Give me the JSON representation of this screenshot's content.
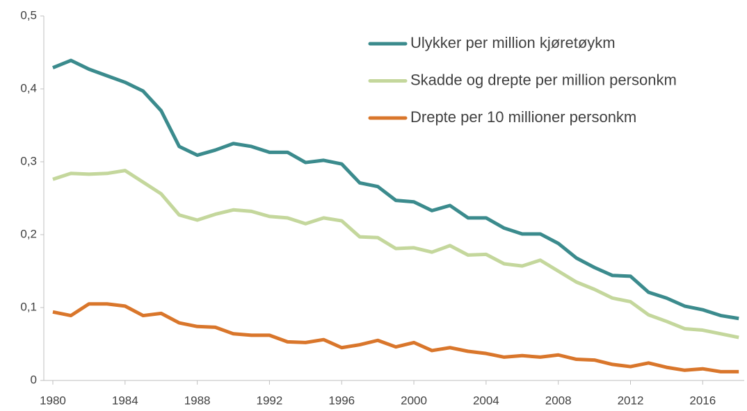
{
  "chart_data": {
    "type": "line",
    "x": [
      1980,
      1981,
      1982,
      1983,
      1984,
      1985,
      1986,
      1987,
      1988,
      1989,
      1990,
      1991,
      1992,
      1993,
      1994,
      1995,
      1996,
      1997,
      1998,
      1999,
      2000,
      2001,
      2002,
      2003,
      2004,
      2005,
      2006,
      2007,
      2008,
      2009,
      2010,
      2011,
      2012,
      2013,
      2014,
      2015,
      2016,
      2017,
      2018
    ],
    "series": [
      {
        "name": "Ulykker per million kjøretøykm",
        "color": "#3b8b8d",
        "values": [
          0.429,
          0.439,
          0.427,
          0.418,
          0.409,
          0.397,
          0.37,
          0.321,
          0.309,
          0.316,
          0.325,
          0.321,
          0.313,
          0.313,
          0.299,
          0.302,
          0.297,
          0.271,
          0.266,
          0.247,
          0.245,
          0.233,
          0.24,
          0.223,
          0.223,
          0.209,
          0.201,
          0.201,
          0.188,
          0.168,
          0.155,
          0.144,
          0.143,
          0.121,
          0.113,
          0.102,
          0.097,
          0.089,
          0.085
        ]
      },
      {
        "name": "Skadde og drepte per million personkm",
        "color": "#c4d79c",
        "values": [
          0.276,
          0.284,
          0.283,
          0.284,
          0.288,
          0.272,
          0.256,
          0.227,
          0.22,
          0.228,
          0.234,
          0.232,
          0.225,
          0.223,
          0.215,
          0.223,
          0.219,
          0.197,
          0.196,
          0.181,
          0.182,
          0.176,
          0.185,
          0.172,
          0.173,
          0.16,
          0.157,
          0.165,
          0.15,
          0.135,
          0.125,
          0.113,
          0.108,
          0.09,
          0.081,
          0.071,
          0.069,
          0.064,
          0.059
        ]
      },
      {
        "name": "Drepte per 10 millioner personkm",
        "color": "#d9762b",
        "values": [
          0.094,
          0.089,
          0.105,
          0.105,
          0.102,
          0.089,
          0.092,
          0.079,
          0.074,
          0.073,
          0.064,
          0.062,
          0.062,
          0.053,
          0.052,
          0.056,
          0.045,
          0.049,
          0.055,
          0.046,
          0.052,
          0.041,
          0.045,
          0.04,
          0.037,
          0.032,
          0.034,
          0.032,
          0.035,
          0.029,
          0.028,
          0.022,
          0.019,
          0.024,
          0.018,
          0.014,
          0.016,
          0.012,
          0.012
        ]
      }
    ],
    "xlim": [
      1979.5,
      2018.3
    ],
    "xticks": [
      1980,
      1984,
      1988,
      1992,
      1996,
      2000,
      2004,
      2008,
      2012,
      2016
    ],
    "ylim": [
      0,
      0.5
    ],
    "yticks": [
      0,
      {
        "value": 0.1,
        "label": "0,1"
      },
      {
        "value": 0.2,
        "label": "0,2"
      },
      {
        "value": 0.3,
        "label": "0,3"
      },
      {
        "value": 0.4,
        "label": "0,4"
      },
      {
        "value": 0.5,
        "label": "0,5"
      }
    ],
    "legend": "top-right"
  }
}
